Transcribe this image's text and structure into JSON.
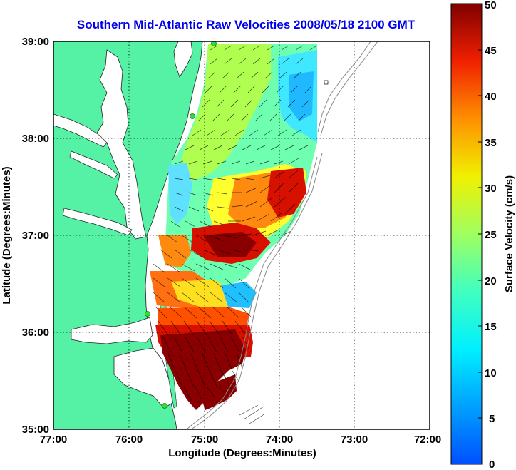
{
  "title": "Southern Mid-Atlantic Raw Velocities 2008/05/18 2100 GMT",
  "x_axis": {
    "label": "Longitude (Degrees:Minutes)",
    "ticks": [
      "77:00",
      "76:00",
      "75:00",
      "74:00",
      "73:00",
      "72:00"
    ]
  },
  "y_axis": {
    "label": "Latitude (Degrees:Minutes)",
    "ticks": [
      "39:00",
      "38:00",
      "37:00",
      "36:00",
      "35:00"
    ]
  },
  "colorbar": {
    "label": "Surface Velocity (cm/s)",
    "ticks": [
      "50",
      "45",
      "40",
      "35",
      "30",
      "25",
      "20",
      "15",
      "10",
      "5",
      "0"
    ],
    "range": [
      0,
      50
    ]
  },
  "colors": {
    "land": "#55f2a5",
    "water": "#ffffff",
    "title": "#0000ee",
    "station": "#33dd33"
  },
  "map_extent": {
    "lon": [
      -77,
      -72
    ],
    "lat": [
      35,
      39
    ]
  },
  "grid": "dotted"
}
